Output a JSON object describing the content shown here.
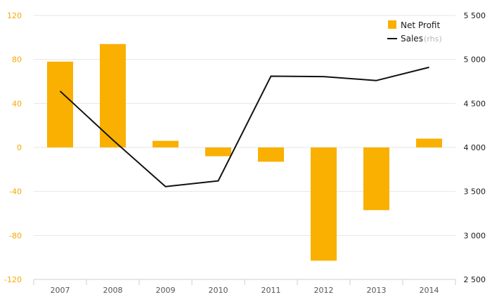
{
  "chart_data": {
    "type": "bar",
    "categories": [
      "2007",
      "2008",
      "2009",
      "2010",
      "2011",
      "2012",
      "2013",
      "2014"
    ],
    "series": [
      {
        "name": "Net Profit",
        "type": "bar",
        "axis": "left",
        "values": [
          78,
          94,
          6,
          -8,
          -13,
          -103,
          -57,
          8
        ]
      },
      {
        "name": "Sales",
        "type": "line",
        "axis": "right",
        "values": [
          4640,
          4085,
          3555,
          3620,
          4810,
          4805,
          4760,
          4910
        ]
      }
    ],
    "y_left": {
      "ylim": [
        -120,
        120
      ],
      "ticks": [
        -120,
        -80,
        -40,
        0,
        40,
        80,
        120
      ],
      "tick_labels": [
        "-120",
        "-80",
        "-40",
        "0",
        "40",
        "80",
        "120"
      ]
    },
    "y_right": {
      "ylim": [
        2500,
        5500
      ],
      "ticks": [
        2500,
        3000,
        3500,
        4000,
        4500,
        5000,
        5500
      ],
      "tick_labels": [
        "2 500",
        "3 000",
        "3 500",
        "4 000",
        "4 500",
        "5 000",
        "5 500"
      ]
    },
    "legend": {
      "placement": "top-right",
      "items": [
        {
          "label": "Net Profit",
          "note": ""
        },
        {
          "label": "Sales",
          "note": "(rhs)"
        }
      ]
    },
    "grid": true,
    "colors": {
      "bar": "#f9b000",
      "line": "#111111",
      "grid": "#e6e6e6",
      "left_axis_text": "#f5a800"
    }
  }
}
